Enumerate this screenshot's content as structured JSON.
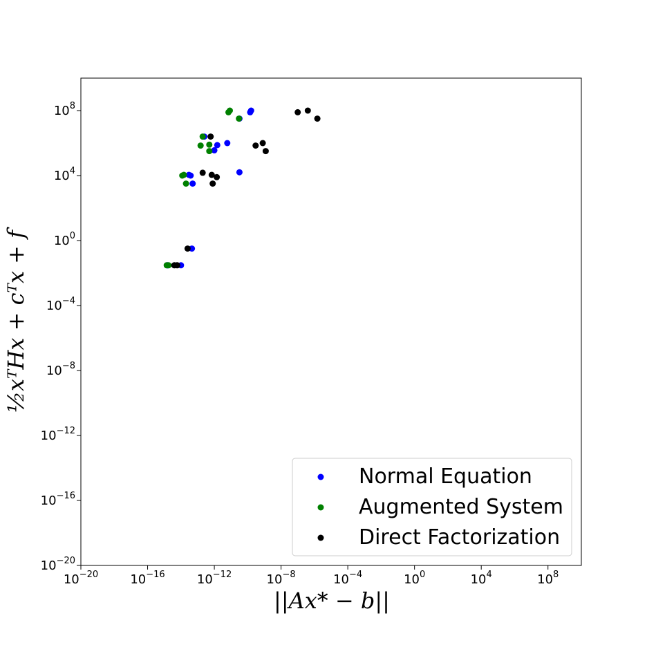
{
  "chart_data": {
    "type": "scatter",
    "xlabel": "||Ax* − b||",
    "ylabel": "½xᵀHx + cᵀx + f",
    "xscale": "log",
    "yscale": "log",
    "xlim": [
      1e-20,
      10000000000.0
    ],
    "ylim": [
      1e-20,
      10000000000.0
    ],
    "x_ticks": [
      {
        "base": "10",
        "exp": "−20",
        "value": 1e-20
      },
      {
        "base": "10",
        "exp": "−16",
        "value": 1e-16
      },
      {
        "base": "10",
        "exp": "−12",
        "value": 1e-12
      },
      {
        "base": "10",
        "exp": "−8",
        "value": 1e-08
      },
      {
        "base": "10",
        "exp": "−4",
        "value": 0.0001
      },
      {
        "base": "10",
        "exp": "0",
        "value": 1
      },
      {
        "base": "10",
        "exp": "4",
        "value": 10000.0
      },
      {
        "base": "10",
        "exp": "8",
        "value": 100000000.0
      }
    ],
    "y_ticks": [
      {
        "base": "10",
        "exp": "−20",
        "value": 1e-20
      },
      {
        "base": "10",
        "exp": "−16",
        "value": 1e-16
      },
      {
        "base": "10",
        "exp": "−12",
        "value": 1e-12
      },
      {
        "base": "10",
        "exp": "−8",
        "value": 1e-08
      },
      {
        "base": "10",
        "exp": "−4",
        "value": 0.0001
      },
      {
        "base": "10",
        "exp": "0",
        "value": 1
      },
      {
        "base": "10",
        "exp": "4",
        "value": 10000.0
      },
      {
        "base": "10",
        "exp": "8",
        "value": 100000000.0
      }
    ],
    "grid": false,
    "legend_position": "lower-right",
    "series": [
      {
        "name": "Normal Equation",
        "color": "#0000ff",
        "points": [
          [
            1.5e-15,
            0.03
          ],
          [
            1.6e-15,
            0.03
          ],
          [
            1e-14,
            0.03
          ],
          [
            4.5e-14,
            0.32
          ],
          [
            3e-14,
            11000.0
          ],
          [
            3.8e-14,
            10000.0
          ],
          [
            5e-14,
            3200.0
          ],
          [
            3.2e-11,
            16000.0
          ],
          [
            2.5e-13,
            2500000.0
          ],
          [
            1e-12,
            360000.0
          ],
          [
            1.5e-12,
            750000.0
          ],
          [
            6e-12,
            1000000.0
          ],
          [
            3.2e-11,
            32000000.0
          ],
          [
            1.4e-10,
            79000000.0
          ],
          [
            1.6e-10,
            100000000.0
          ]
        ]
      },
      {
        "name": "Augmented System",
        "color": "#008000",
        "points": [
          [
            1.4e-15,
            0.03
          ],
          [
            1.8e-15,
            0.03
          ],
          [
            1.2e-14,
            10000.0
          ],
          [
            1.5e-14,
            11000.0
          ],
          [
            2e-14,
            3200.0
          ],
          [
            1.5e-13,
            700000.0
          ],
          [
            2e-13,
            2500000.0
          ],
          [
            5e-13,
            800000.0
          ],
          [
            5e-13,
            320000.0
          ],
          [
            7e-12,
            79000000.0
          ],
          [
            8.5e-12,
            100000000.0
          ],
          [
            3e-11,
            32000000.0
          ]
        ]
      },
      {
        "name": "Direct Factorization",
        "color": "#000000",
        "points": [
          [
            4e-15,
            0.03
          ],
          [
            6e-15,
            0.03
          ],
          [
            2.5e-14,
            0.32
          ],
          [
            2e-13,
            15000.0
          ],
          [
            7e-13,
            11000.0
          ],
          [
            8e-13,
            3200.0
          ],
          [
            1.4e-12,
            8000.0
          ],
          [
            6e-13,
            2500000.0
          ],
          [
            3e-10,
            700000.0
          ],
          [
            8e-10,
            1000000.0
          ],
          [
            1.2e-09,
            320000.0
          ],
          [
            1e-07,
            79000000.0
          ],
          [
            4e-07,
            100000000.0
          ],
          [
            1.5e-06,
            32000000.0
          ]
        ]
      }
    ]
  }
}
